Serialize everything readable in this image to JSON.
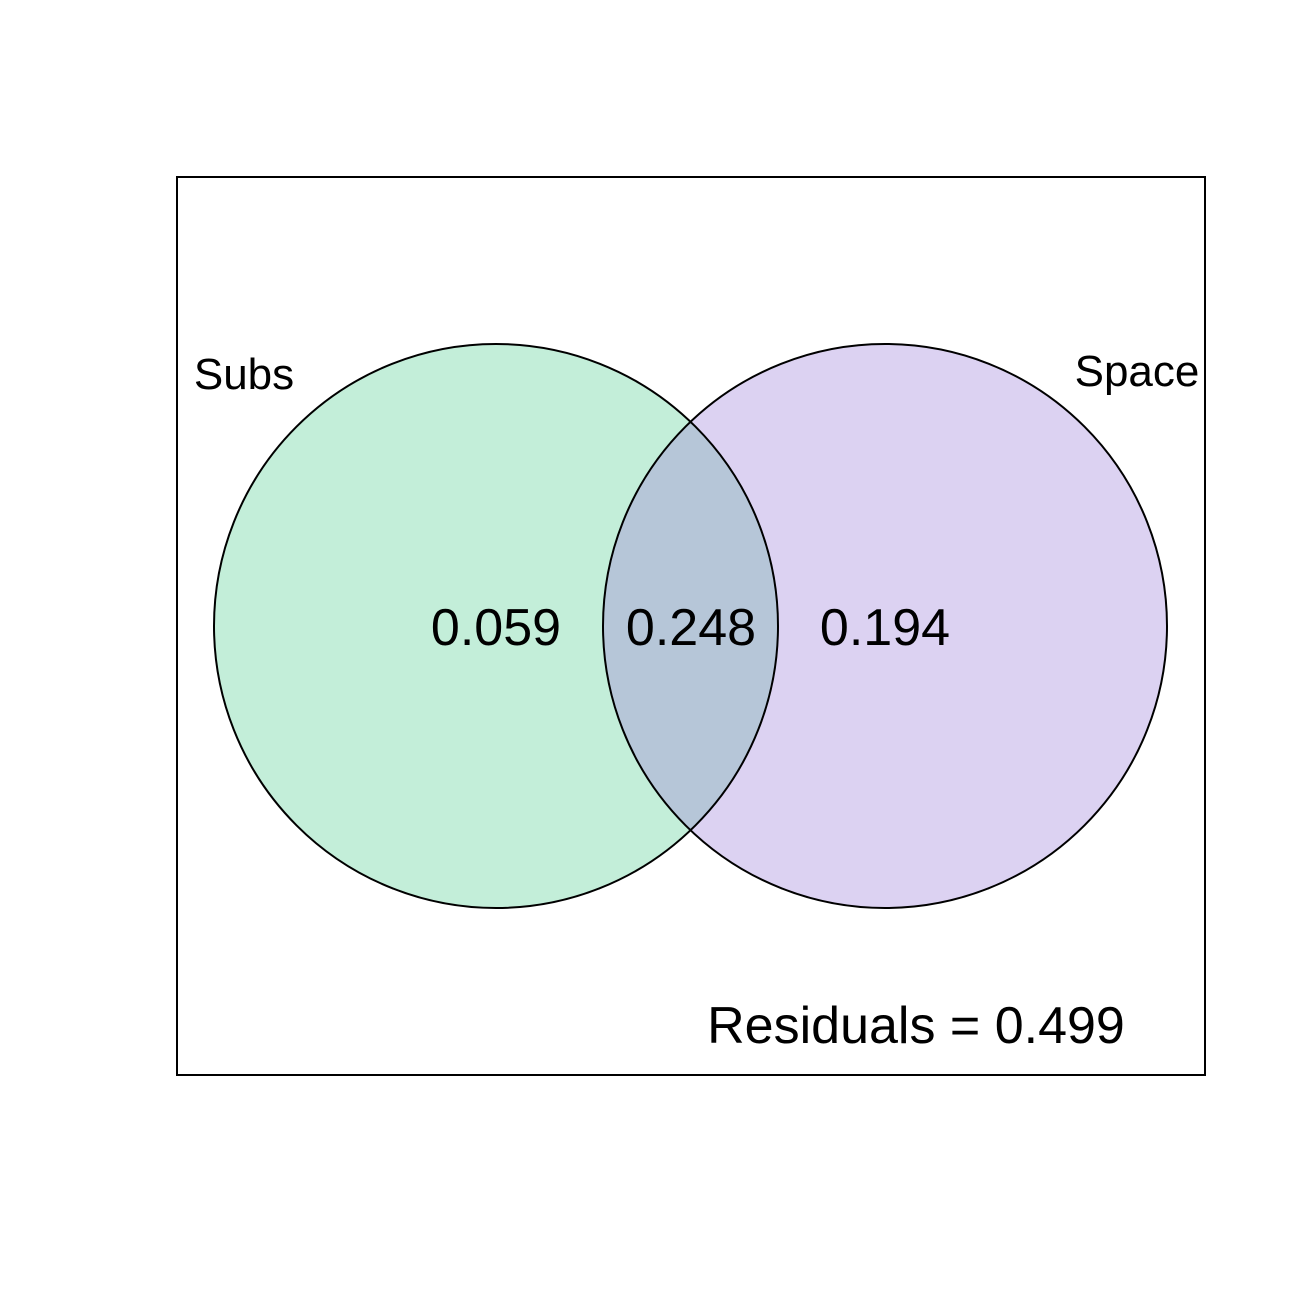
{
  "diagram": {
    "type": "venn",
    "sets": [
      {
        "label": "Subs",
        "fill": "#c3eed9"
      },
      {
        "label": "Space",
        "fill": "#dcd2f2"
      }
    ],
    "regions": {
      "subs_only": "0.059",
      "intersection": "0.248",
      "space_only": "0.194"
    },
    "intersection_fill": "#b6c6d8",
    "residuals_label": "Residuals = 0.499",
    "stroke_color": "#000000"
  }
}
